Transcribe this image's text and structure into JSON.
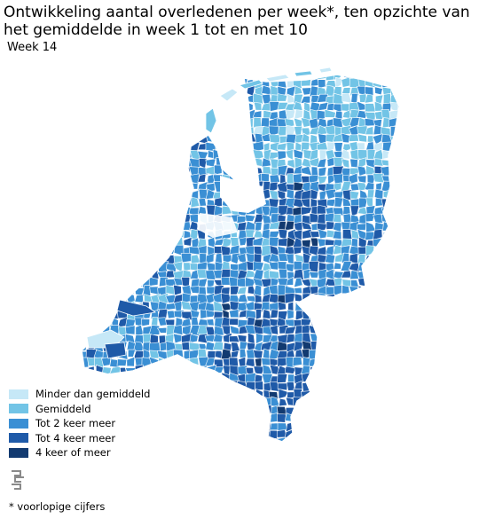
{
  "title": "Ontwikkeling aantal overledenen per week*, ten opzichte van\nhet gemiddelde in week 1 tot en met 10",
  "subtitle": "Week 14",
  "legend": {
    "items": [
      {
        "label": "Minder dan gemiddeld",
        "color": "#c6e8f7"
      },
      {
        "label": "Gemiddeld",
        "color": "#72c4e6"
      },
      {
        "label": "Tot 2 keer meer",
        "color": "#3a8fd4"
      },
      {
        "label": "Tot 4 keer meer",
        "color": "#1f5aa8"
      },
      {
        "label": "4 keer of meer",
        "color": "#123a70"
      }
    ]
  },
  "logo": {
    "icon": "cbs-logo-icon"
  },
  "footnote": "* voorlopige cijfers"
}
